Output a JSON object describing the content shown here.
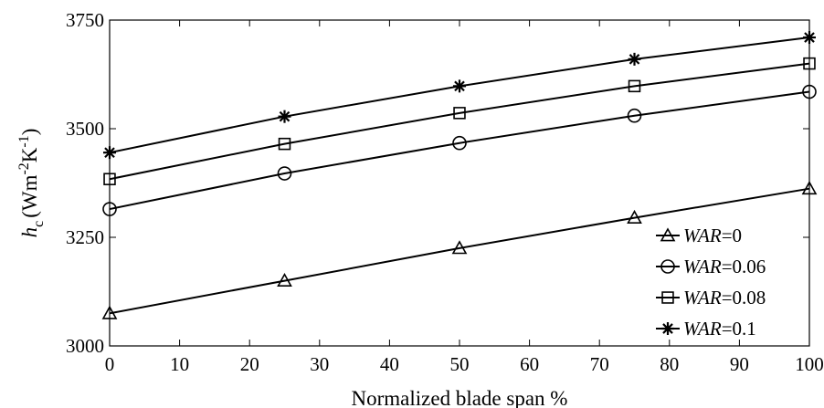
{
  "chart_data": {
    "type": "line",
    "title": "",
    "xlabel": "Normalized blade span %",
    "ylabel_parts": {
      "symbol": "h",
      "subscript": "c",
      "unit_open": "(Wm",
      "exp1": "-2",
      "unit_mid": "K",
      "exp2": "-1",
      "unit_close": ")"
    },
    "xlim": [
      0,
      100
    ],
    "ylim": [
      3000,
      3750
    ],
    "xticks": [
      0,
      10,
      20,
      30,
      40,
      50,
      60,
      70,
      80,
      90,
      100
    ],
    "yticks": [
      3000,
      3250,
      3500,
      3750
    ],
    "grid": false,
    "legend_position": "bottom-right",
    "x": [
      0,
      25,
      50,
      75,
      100
    ],
    "series": [
      {
        "var": "WAR",
        "value_text": "=0",
        "marker": "triangle",
        "values": [
          3075,
          3150,
          3225,
          3295,
          3362
        ]
      },
      {
        "var": "WAR",
        "value_text": "=0.06",
        "marker": "circle",
        "values": [
          3315,
          3397,
          3467,
          3530,
          3585
        ]
      },
      {
        "var": "WAR",
        "value_text": "=0.08",
        "marker": "square",
        "values": [
          3384,
          3465,
          3536,
          3598,
          3650
        ]
      },
      {
        "var": "WAR",
        "value_text": "=0.1",
        "marker": "asterisk",
        "values": [
          3445,
          3528,
          3598,
          3660,
          3710
        ]
      }
    ]
  }
}
